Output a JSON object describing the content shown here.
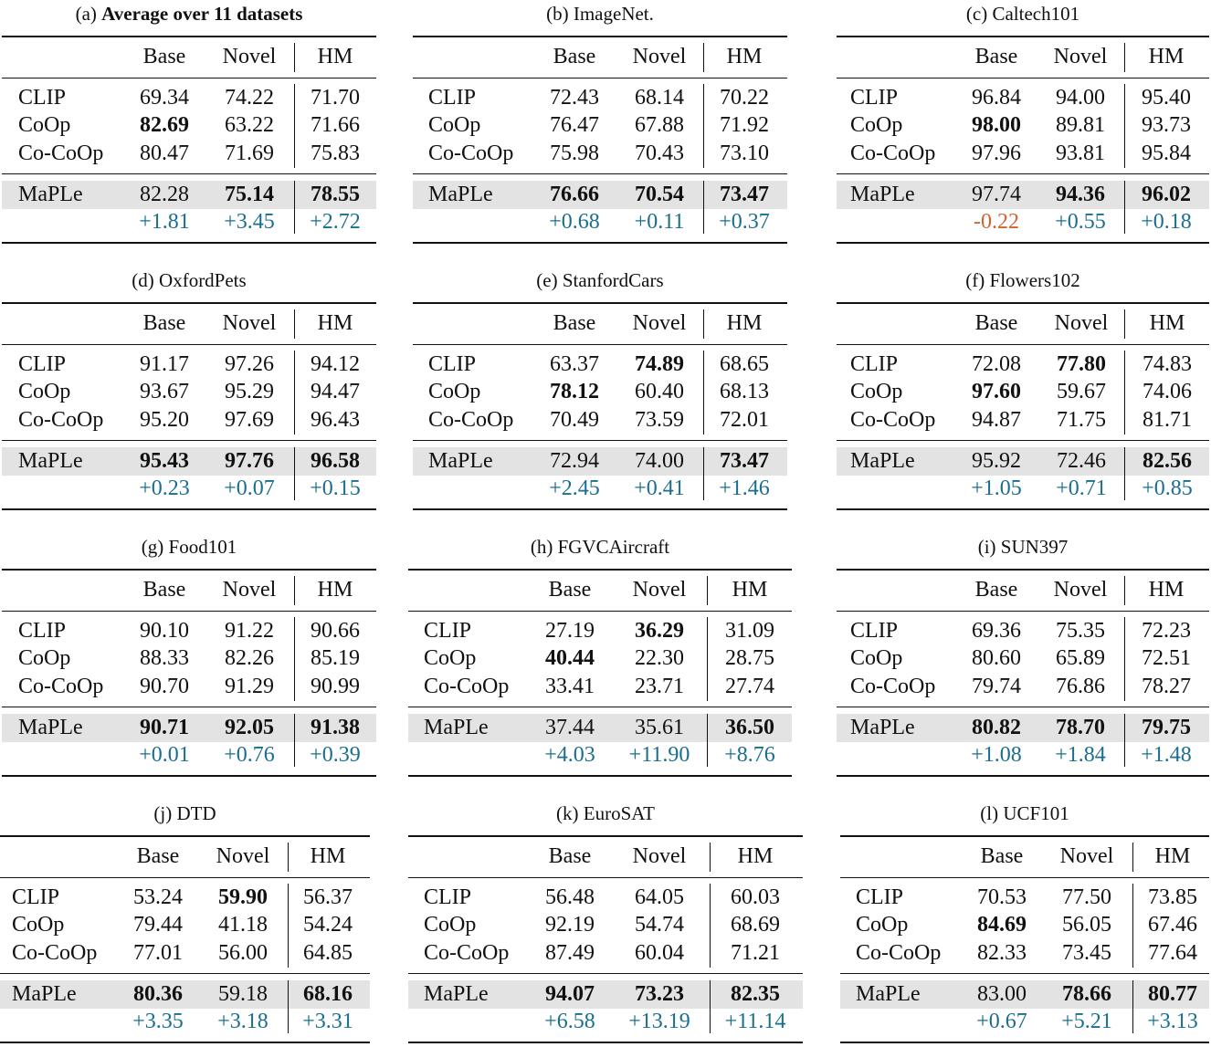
{
  "columns": [
    "Base",
    "Novel",
    "HM"
  ],
  "colors": {
    "gain": "#1a6e8e",
    "loss": "#d2642a",
    "highlight": "#e3e3e3"
  },
  "panels": [
    {
      "prefix": "(a)",
      "name": "Average over 11 datasets",
      "name_bold": true,
      "rows": [
        {
          "method": "CLIP",
          "values": [
            "69.34",
            "74.22",
            "71.70"
          ],
          "bold": [
            false,
            false,
            false
          ]
        },
        {
          "method": "CoOp",
          "values": [
            "82.69",
            "63.22",
            "71.66"
          ],
          "bold": [
            true,
            false,
            false
          ]
        },
        {
          "method": "Co-CoOp",
          "values": [
            "80.47",
            "71.69",
            "75.83"
          ],
          "bold": [
            false,
            false,
            false
          ]
        }
      ],
      "maple": {
        "method": "MaPLe",
        "values": [
          "82.28",
          "75.14",
          "78.55"
        ],
        "bold": [
          false,
          true,
          true
        ]
      },
      "delta": [
        {
          "text": "+1.81",
          "sign": "pos"
        },
        {
          "text": "+3.45",
          "sign": "pos"
        },
        {
          "text": "+2.72",
          "sign": "pos"
        }
      ]
    },
    {
      "prefix": "(b)",
      "name": "ImageNet.",
      "name_bold": false,
      "rows": [
        {
          "method": "CLIP",
          "values": [
            "72.43",
            "68.14",
            "70.22"
          ],
          "bold": [
            false,
            false,
            false
          ]
        },
        {
          "method": "CoOp",
          "values": [
            "76.47",
            "67.88",
            "71.92"
          ],
          "bold": [
            false,
            false,
            false
          ]
        },
        {
          "method": "Co-CoOp",
          "values": [
            "75.98",
            "70.43",
            "73.10"
          ],
          "bold": [
            false,
            false,
            false
          ]
        }
      ],
      "maple": {
        "method": "MaPLe",
        "values": [
          "76.66",
          "70.54",
          "73.47"
        ],
        "bold": [
          true,
          true,
          true
        ]
      },
      "delta": [
        {
          "text": "+0.68",
          "sign": "pos"
        },
        {
          "text": "+0.11",
          "sign": "pos"
        },
        {
          "text": "+0.37",
          "sign": "pos"
        }
      ]
    },
    {
      "prefix": "(c)",
      "name": "Caltech101",
      "name_bold": false,
      "rows": [
        {
          "method": "CLIP",
          "values": [
            "96.84",
            "94.00",
            "95.40"
          ],
          "bold": [
            false,
            false,
            false
          ]
        },
        {
          "method": "CoOp",
          "values": [
            "98.00",
            "89.81",
            "93.73"
          ],
          "bold": [
            true,
            false,
            false
          ]
        },
        {
          "method": "Co-CoOp",
          "values": [
            "97.96",
            "93.81",
            "95.84"
          ],
          "bold": [
            false,
            false,
            false
          ]
        }
      ],
      "maple": {
        "method": "MaPLe",
        "values": [
          "97.74",
          "94.36",
          "96.02"
        ],
        "bold": [
          false,
          true,
          true
        ]
      },
      "delta": [
        {
          "text": "-0.22",
          "sign": "neg"
        },
        {
          "text": "+0.55",
          "sign": "pos"
        },
        {
          "text": "+0.18",
          "sign": "pos"
        }
      ]
    },
    {
      "prefix": "(d)",
      "name": "OxfordPets",
      "name_bold": false,
      "rows": [
        {
          "method": "CLIP",
          "values": [
            "91.17",
            "97.26",
            "94.12"
          ],
          "bold": [
            false,
            false,
            false
          ]
        },
        {
          "method": "CoOp",
          "values": [
            "93.67",
            "95.29",
            "94.47"
          ],
          "bold": [
            false,
            false,
            false
          ]
        },
        {
          "method": "Co-CoOp",
          "values": [
            "95.20",
            "97.69",
            "96.43"
          ],
          "bold": [
            false,
            false,
            false
          ]
        }
      ],
      "maple": {
        "method": "MaPLe",
        "values": [
          "95.43",
          "97.76",
          "96.58"
        ],
        "bold": [
          true,
          true,
          true
        ]
      },
      "delta": [
        {
          "text": "+0.23",
          "sign": "pos"
        },
        {
          "text": "+0.07",
          "sign": "pos"
        },
        {
          "text": "+0.15",
          "sign": "pos"
        }
      ]
    },
    {
      "prefix": "(e)",
      "name": "StanfordCars",
      "name_bold": false,
      "rows": [
        {
          "method": "CLIP",
          "values": [
            "63.37",
            "74.89",
            "68.65"
          ],
          "bold": [
            false,
            true,
            false
          ]
        },
        {
          "method": "CoOp",
          "values": [
            "78.12",
            "60.40",
            "68.13"
          ],
          "bold": [
            true,
            false,
            false
          ]
        },
        {
          "method": "Co-CoOp",
          "values": [
            "70.49",
            "73.59",
            "72.01"
          ],
          "bold": [
            false,
            false,
            false
          ]
        }
      ],
      "maple": {
        "method": "MaPLe",
        "values": [
          "72.94",
          "74.00",
          "73.47"
        ],
        "bold": [
          false,
          false,
          true
        ]
      },
      "delta": [
        {
          "text": "+2.45",
          "sign": "pos"
        },
        {
          "text": "+0.41",
          "sign": "pos"
        },
        {
          "text": "+1.46",
          "sign": "pos"
        }
      ]
    },
    {
      "prefix": "(f)",
      "name": "Flowers102",
      "name_bold": false,
      "rows": [
        {
          "method": "CLIP",
          "values": [
            "72.08",
            "77.80",
            "74.83"
          ],
          "bold": [
            false,
            true,
            false
          ]
        },
        {
          "method": "CoOp",
          "values": [
            "97.60",
            "59.67",
            "74.06"
          ],
          "bold": [
            true,
            false,
            false
          ]
        },
        {
          "method": "Co-CoOp",
          "values": [
            "94.87",
            "71.75",
            "81.71"
          ],
          "bold": [
            false,
            false,
            false
          ]
        }
      ],
      "maple": {
        "method": "MaPLe",
        "values": [
          "95.92",
          "72.46",
          "82.56"
        ],
        "bold": [
          false,
          false,
          true
        ]
      },
      "delta": [
        {
          "text": "+1.05",
          "sign": "pos"
        },
        {
          "text": "+0.71",
          "sign": "pos"
        },
        {
          "text": "+0.85",
          "sign": "pos"
        }
      ]
    },
    {
      "prefix": "(g)",
      "name": "Food101",
      "name_bold": false,
      "rows": [
        {
          "method": "CLIP",
          "values": [
            "90.10",
            "91.22",
            "90.66"
          ],
          "bold": [
            false,
            false,
            false
          ]
        },
        {
          "method": "CoOp",
          "values": [
            "88.33",
            "82.26",
            "85.19"
          ],
          "bold": [
            false,
            false,
            false
          ]
        },
        {
          "method": "Co-CoOp",
          "values": [
            "90.70",
            "91.29",
            "90.99"
          ],
          "bold": [
            false,
            false,
            false
          ]
        }
      ],
      "maple": {
        "method": "MaPLe",
        "values": [
          "90.71",
          "92.05",
          "91.38"
        ],
        "bold": [
          true,
          true,
          true
        ]
      },
      "delta": [
        {
          "text": "+0.01",
          "sign": "pos"
        },
        {
          "text": "+0.76",
          "sign": "pos"
        },
        {
          "text": "+0.39",
          "sign": "pos"
        }
      ]
    },
    {
      "prefix": "(h)",
      "name": "FGVCAircraft",
      "name_bold": false,
      "rows": [
        {
          "method": "CLIP",
          "values": [
            "27.19",
            "36.29",
            "31.09"
          ],
          "bold": [
            false,
            true,
            false
          ]
        },
        {
          "method": "CoOp",
          "values": [
            "40.44",
            "22.30",
            "28.75"
          ],
          "bold": [
            true,
            false,
            false
          ]
        },
        {
          "method": "Co-CoOp",
          "values": [
            "33.41",
            "23.71",
            "27.74"
          ],
          "bold": [
            false,
            false,
            false
          ]
        }
      ],
      "maple": {
        "method": "MaPLe",
        "values": [
          "37.44",
          "35.61",
          "36.50"
        ],
        "bold": [
          false,
          false,
          true
        ]
      },
      "delta": [
        {
          "text": "+4.03",
          "sign": "pos"
        },
        {
          "text": "+11.90",
          "sign": "pos"
        },
        {
          "text": "+8.76",
          "sign": "pos"
        }
      ]
    },
    {
      "prefix": "(i)",
      "name": "SUN397",
      "name_bold": false,
      "rows": [
        {
          "method": "CLIP",
          "values": [
            "69.36",
            "75.35",
            "72.23"
          ],
          "bold": [
            false,
            false,
            false
          ]
        },
        {
          "method": "CoOp",
          "values": [
            "80.60",
            "65.89",
            "72.51"
          ],
          "bold": [
            false,
            false,
            false
          ]
        },
        {
          "method": "Co-CoOp",
          "values": [
            "79.74",
            "76.86",
            "78.27"
          ],
          "bold": [
            false,
            false,
            false
          ]
        }
      ],
      "maple": {
        "method": "MaPLe",
        "values": [
          "80.82",
          "78.70",
          "79.75"
        ],
        "bold": [
          true,
          true,
          true
        ]
      },
      "delta": [
        {
          "text": "+1.08",
          "sign": "pos"
        },
        {
          "text": "+1.84",
          "sign": "pos"
        },
        {
          "text": "+1.48",
          "sign": "pos"
        }
      ]
    },
    {
      "prefix": "(j)",
      "name": "DTD",
      "name_bold": false,
      "rows": [
        {
          "method": "CLIP",
          "values": [
            "53.24",
            "59.90",
            "56.37"
          ],
          "bold": [
            false,
            true,
            false
          ]
        },
        {
          "method": "CoOp",
          "values": [
            "79.44",
            "41.18",
            "54.24"
          ],
          "bold": [
            false,
            false,
            false
          ]
        },
        {
          "method": "Co-CoOp",
          "values": [
            "77.01",
            "56.00",
            "64.85"
          ],
          "bold": [
            false,
            false,
            false
          ]
        }
      ],
      "maple": {
        "method": "MaPLe",
        "values": [
          "80.36",
          "59.18",
          "68.16"
        ],
        "bold": [
          true,
          false,
          true
        ]
      },
      "delta": [
        {
          "text": "+3.35",
          "sign": "pos"
        },
        {
          "text": "+3.18",
          "sign": "pos"
        },
        {
          "text": "+3.31",
          "sign": "pos"
        }
      ]
    },
    {
      "prefix": "(k)",
      "name": "EuroSAT",
      "name_bold": false,
      "rows": [
        {
          "method": "CLIP",
          "values": [
            "56.48",
            "64.05",
            "60.03"
          ],
          "bold": [
            false,
            false,
            false
          ]
        },
        {
          "method": "CoOp",
          "values": [
            "92.19",
            "54.74",
            "68.69"
          ],
          "bold": [
            false,
            false,
            false
          ]
        },
        {
          "method": "Co-CoOp",
          "values": [
            "87.49",
            "60.04",
            "71.21"
          ],
          "bold": [
            false,
            false,
            false
          ]
        }
      ],
      "maple": {
        "method": "MaPLe",
        "values": [
          "94.07",
          "73.23",
          "82.35"
        ],
        "bold": [
          true,
          true,
          true
        ]
      },
      "delta": [
        {
          "text": "+6.58",
          "sign": "pos"
        },
        {
          "text": "+13.19",
          "sign": "pos"
        },
        {
          "text": "+11.14",
          "sign": "pos"
        }
      ]
    },
    {
      "prefix": "(l)",
      "name": "UCF101",
      "name_bold": false,
      "rows": [
        {
          "method": "CLIP",
          "values": [
            "70.53",
            "77.50",
            "73.85"
          ],
          "bold": [
            false,
            false,
            false
          ]
        },
        {
          "method": "CoOp",
          "values": [
            "84.69",
            "56.05",
            "67.46"
          ],
          "bold": [
            true,
            false,
            false
          ]
        },
        {
          "method": "Co-CoOp",
          "values": [
            "82.33",
            "73.45",
            "77.64"
          ],
          "bold": [
            false,
            false,
            false
          ]
        }
      ],
      "maple": {
        "method": "MaPLe",
        "values": [
          "83.00",
          "78.66",
          "80.77"
        ],
        "bold": [
          false,
          true,
          true
        ]
      },
      "delta": [
        {
          "text": "+0.67",
          "sign": "pos"
        },
        {
          "text": "+5.21",
          "sign": "pos"
        },
        {
          "text": "+3.13",
          "sign": "pos"
        }
      ]
    }
  ]
}
